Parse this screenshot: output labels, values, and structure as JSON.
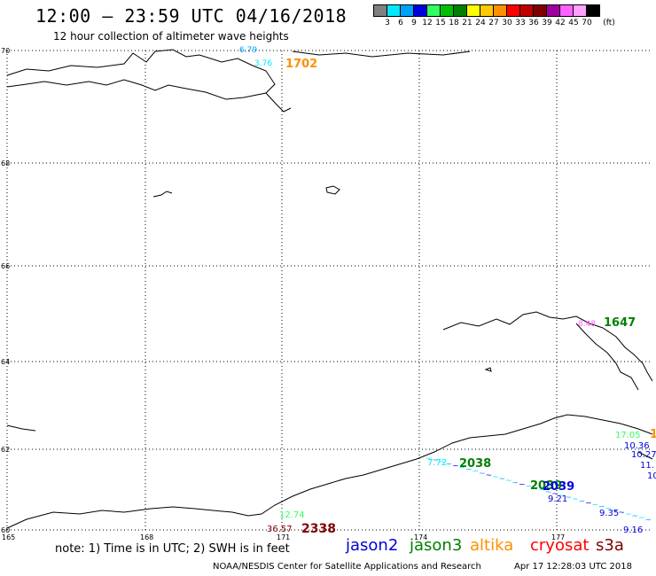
{
  "title": "12:00 – 23:59 UTC 04/16/2018",
  "subtitle": "12 hour collection of altimeter wave heights",
  "legend": {
    "unit": "(ft)",
    "bins": [
      {
        "label": "3",
        "color": "#808080"
      },
      {
        "label": "6",
        "color": "#00e8ff"
      },
      {
        "label": "9",
        "color": "#00a0ff"
      },
      {
        "label": "12",
        "color": "#0000e0"
      },
      {
        "label": "15",
        "color": "#30ff60"
      },
      {
        "label": "18",
        "color": "#00c000"
      },
      {
        "label": "21",
        "color": "#008000"
      },
      {
        "label": "24",
        "color": "#ffff00"
      },
      {
        "label": "27",
        "color": "#ffc800"
      },
      {
        "label": "30",
        "color": "#ff9000"
      },
      {
        "label": "33",
        "color": "#ff0000"
      },
      {
        "label": "36",
        "color": "#c00000"
      },
      {
        "label": "39",
        "color": "#800000"
      },
      {
        "label": "42",
        "color": "#a000a0"
      },
      {
        "label": "45",
        "color": "#ff60ff"
      },
      {
        "label": "70",
        "color": "#ffa0ff"
      },
      {
        "label": "",
        "color": "#000000"
      }
    ]
  },
  "latitude_labels": [
    "70",
    "68",
    "66",
    "64",
    "62",
    "60"
  ],
  "longitude_labels": [
    "165",
    "168",
    "171",
    "174",
    "177"
  ],
  "observations": [
    {
      "text": "6.79",
      "color": "#00a0ff"
    },
    {
      "text": "3.76",
      "color": "#00e8ff"
    },
    {
      "text": "1702",
      "color": "#ff9000"
    },
    {
      "text": "8.48",
      "color": "#ff60ff"
    },
    {
      "text": "1647",
      "color": "#008000"
    },
    {
      "text": "17.05",
      "color": "#30ff60"
    },
    {
      "text": "1",
      "color": "#ff9000"
    },
    {
      "text": "10.36",
      "color": "#0000e0"
    },
    {
      "text": "10.27",
      "color": "#0000e0"
    },
    {
      "text": "11.",
      "color": "#0000e0"
    },
    {
      "text": "10",
      "color": "#0000e0"
    },
    {
      "text": "7.72",
      "color": "#00e8ff"
    },
    {
      "text": "2038",
      "color": "#008000"
    },
    {
      "text": "2039",
      "color": "#008000"
    },
    {
      "text": "2039",
      "color": "#0000e0"
    },
    {
      "text": "9.21",
      "color": "#0000e0"
    },
    {
      "text": "9.35",
      "color": "#0000e0"
    },
    {
      "text": "9.16",
      "color": "#0000e0"
    },
    {
      "text": "12.74",
      "color": "#30ff60"
    },
    {
      "text": "36.57",
      "color": "#800000"
    },
    {
      "text": "2338",
      "color": "#800000"
    }
  ],
  "note": "note: 1) Time is in UTC; 2) SWH is in feet",
  "satellites": [
    {
      "name": "jason2",
      "color": "#0000e0"
    },
    {
      "name": "jason3",
      "color": "#008000"
    },
    {
      "name": "altika",
      "color": "#ff9000"
    },
    {
      "name": "cryosat",
      "color": "#ff0000"
    },
    {
      "name": "s3a",
      "color": "#800000"
    }
  ],
  "footer": {
    "credit": "NOAA/NESDIS Center for Satellite Applications and Research",
    "timestamp": "Apr 17 12:28:03 UTC 2018"
  }
}
